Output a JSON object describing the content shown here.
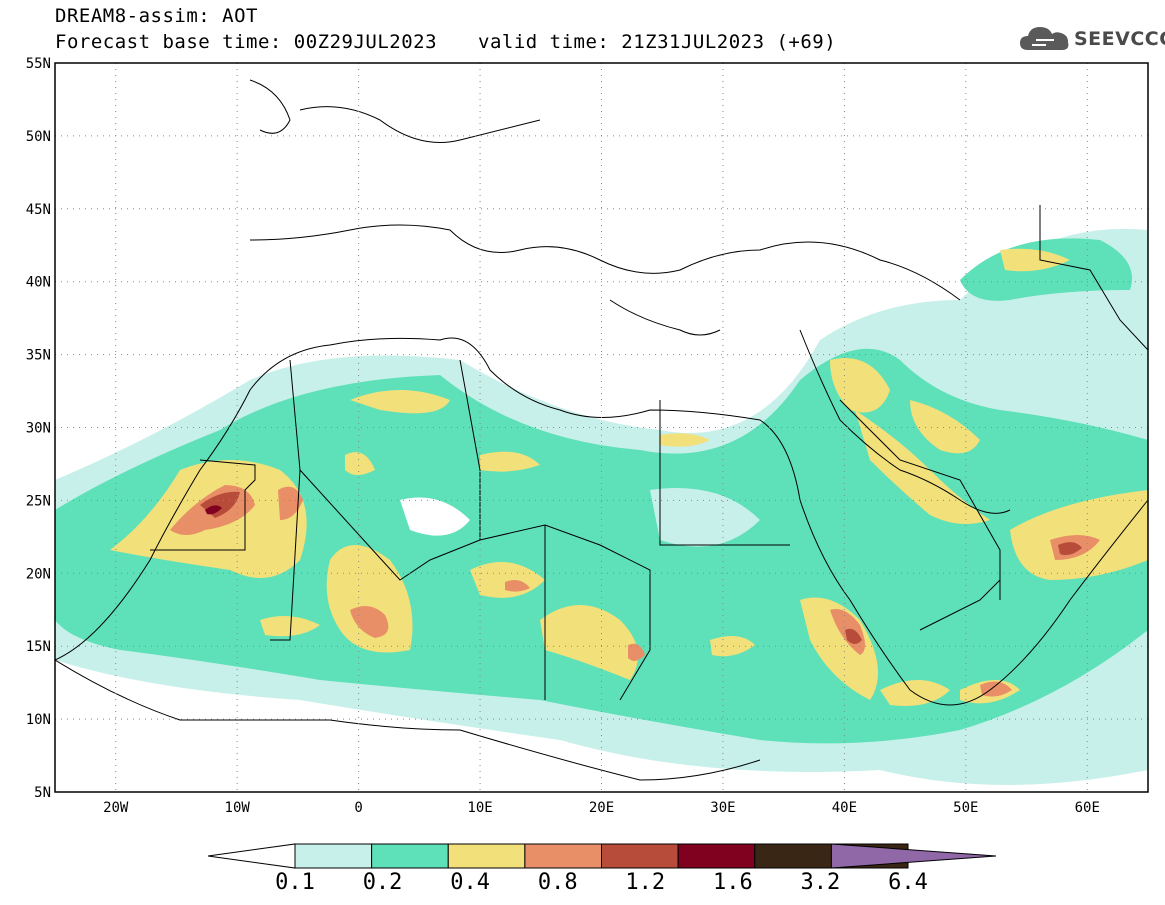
{
  "header": {
    "model_line": "DREAM8-assim: AOT",
    "base_time": "Forecast base time: 00Z29JUL2023",
    "valid_time": "valid time: 21Z31JUL2023 (+69)"
  },
  "logo": {
    "text": "SEEVCCC",
    "icon": "cloud-icon"
  },
  "axes": {
    "lat_labels": [
      "5N",
      "10N",
      "15N",
      "20N",
      "25N",
      "30N",
      "35N",
      "40N",
      "45N",
      "50N",
      "55N"
    ],
    "lat_values": [
      5,
      10,
      15,
      20,
      25,
      30,
      35,
      40,
      45,
      50,
      55
    ],
    "lon_labels": [
      "20W",
      "10W",
      "0",
      "10E",
      "20E",
      "30E",
      "40E",
      "50E",
      "60E"
    ],
    "lon_values": [
      -20,
      -10,
      0,
      10,
      20,
      30,
      40,
      50,
      60
    ],
    "lon_range": [
      -25,
      65
    ],
    "lat_range": [
      5,
      55
    ]
  },
  "colorbar": {
    "labels": [
      "0.1",
      "0.2",
      "0.4",
      "0.8",
      "1.2",
      "1.6",
      "3.2",
      "6.4"
    ],
    "colors": [
      "#c8f0ea",
      "#5ee0b8",
      "#f2e07a",
      "#e88f68",
      "#b84c3a",
      "#800020",
      "#3a2614",
      "#9068a8"
    ]
  }
}
